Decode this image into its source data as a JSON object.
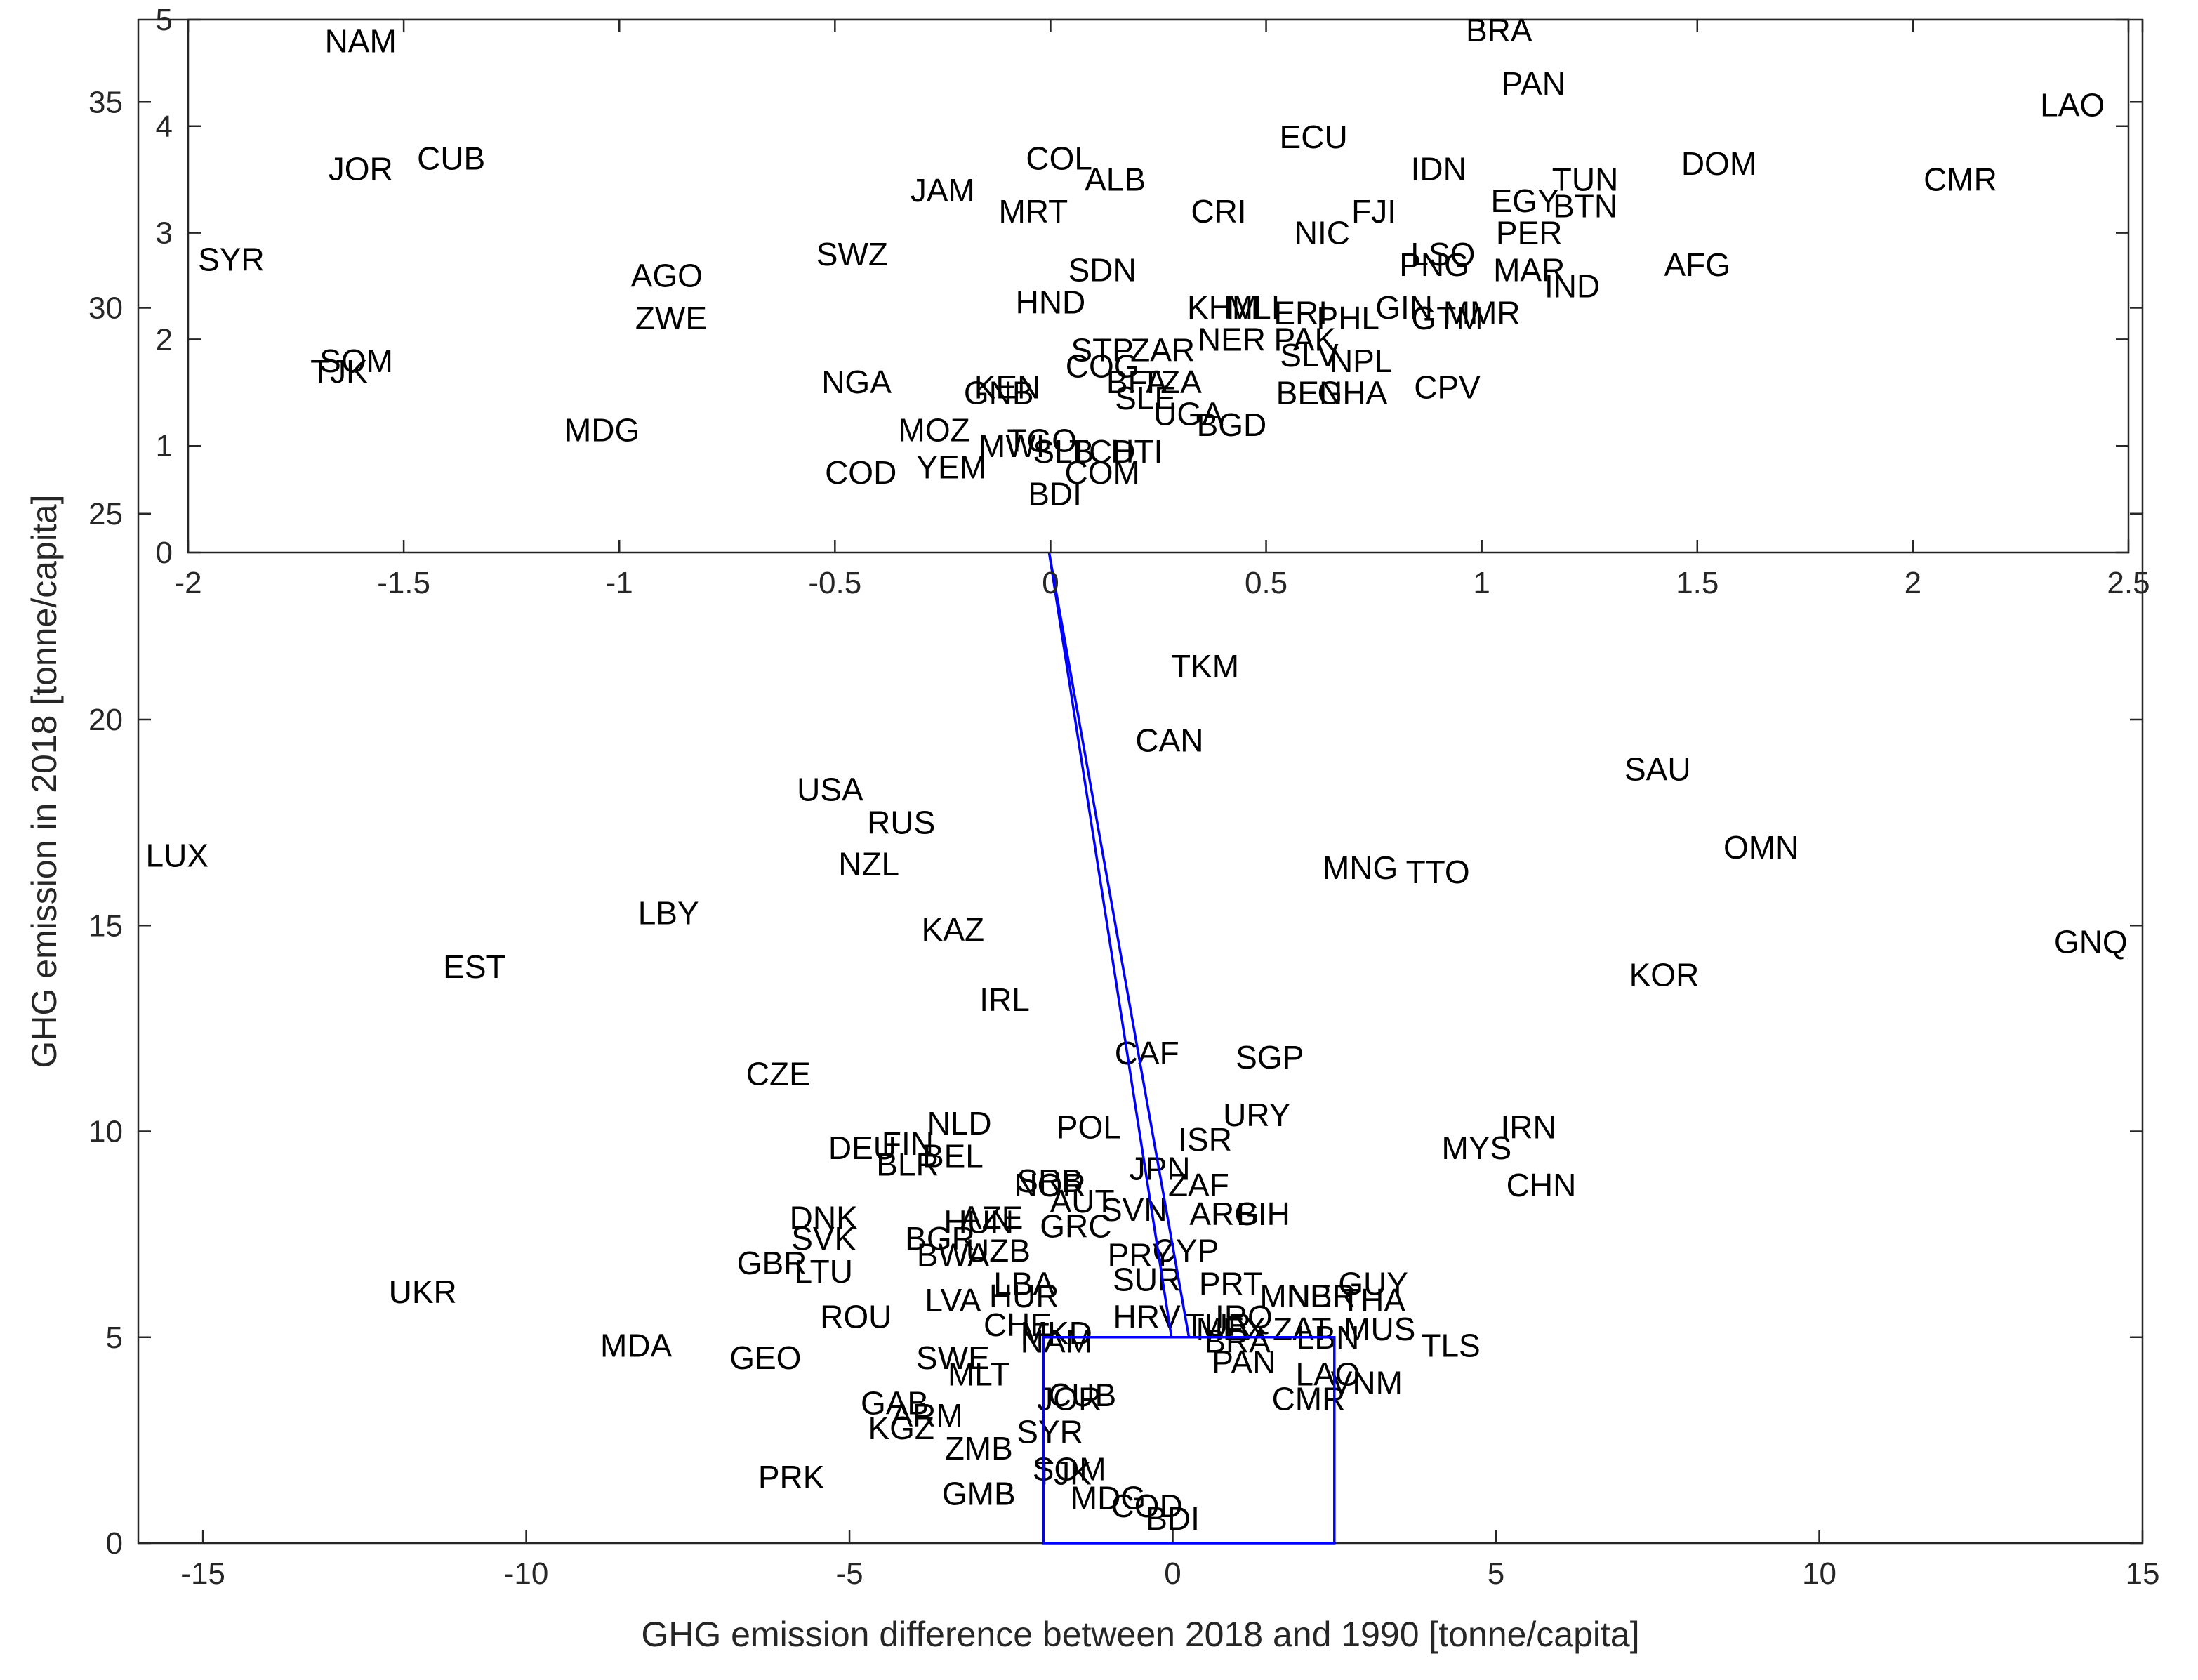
{
  "chart_data": [
    {
      "type": "scatter",
      "panel": "main",
      "xlabel": "GHG emission difference between 2018 and 1990 [tonne/capita]",
      "ylabel": "GHG emission in 2018 [tonne/capita]",
      "xlim": [
        -16,
        15
      ],
      "ylim": [
        0,
        37
      ],
      "xticks": [
        -15,
        -10,
        -5,
        0,
        5,
        10,
        15
      ],
      "yticks": [
        0,
        5,
        10,
        15,
        20,
        25,
        30,
        35
      ],
      "xtick_labels": [
        "-15",
        "-10",
        "-5",
        "0",
        "5",
        "10",
        "15"
      ],
      "ytick_labels": [
        "0",
        "5",
        "10",
        "15",
        "20",
        "25",
        "30",
        "35"
      ],
      "grid": false,
      "zoom_box": {
        "x": [
          -2,
          2.5
        ],
        "y": [
          0,
          5
        ],
        "color": "#0000ff"
      },
      "points": [
        {
          "label": "TKM",
          "x": 0.5,
          "y": 21.3
        },
        {
          "label": "CAN",
          "x": -0.05,
          "y": 19.5
        },
        {
          "label": "SAU",
          "x": 7.5,
          "y": 18.8
        },
        {
          "label": "USA",
          "x": -5.3,
          "y": 18.3
        },
        {
          "label": "RUS",
          "x": -4.2,
          "y": 17.5
        },
        {
          "label": "LUX",
          "x": -15.4,
          "y": 16.7
        },
        {
          "label": "OMN",
          "x": 9.1,
          "y": 16.9
        },
        {
          "label": "MNG",
          "x": 2.9,
          "y": 16.4
        },
        {
          "label": "TTO",
          "x": 4.1,
          "y": 16.3
        },
        {
          "label": "NZL",
          "x": -4.7,
          "y": 16.5
        },
        {
          "label": "LBY",
          "x": -7.8,
          "y": 15.3
        },
        {
          "label": "KAZ",
          "x": -3.4,
          "y": 14.9
        },
        {
          "label": "GNQ",
          "x": 14.2,
          "y": 14.6
        },
        {
          "label": "EST",
          "x": -10.8,
          "y": 14.0
        },
        {
          "label": "KOR",
          "x": 7.6,
          "y": 13.8
        },
        {
          "label": "IRL",
          "x": -2.6,
          "y": 13.2
        },
        {
          "label": "CAF",
          "x": -0.4,
          "y": 11.9
        },
        {
          "label": "SGP",
          "x": 1.5,
          "y": 11.8
        },
        {
          "label": "CZE",
          "x": -6.1,
          "y": 11.4
        },
        {
          "label": "URY",
          "x": 1.3,
          "y": 10.4
        },
        {
          "label": "NLD",
          "x": -3.3,
          "y": 10.2
        },
        {
          "label": "POL",
          "x": -1.3,
          "y": 10.1
        },
        {
          "label": "IRN",
          "x": 5.5,
          "y": 10.1
        },
        {
          "label": "FIN",
          "x": -4.1,
          "y": 9.7
        },
        {
          "label": "ISR",
          "x": 0.5,
          "y": 9.8
        },
        {
          "label": "MYS",
          "x": 4.7,
          "y": 9.6
        },
        {
          "label": "DEU",
          "x": -4.8,
          "y": 9.6
        },
        {
          "label": "BEL",
          "x": -3.4,
          "y": 9.4
        },
        {
          "label": "BLR",
          "x": -4.1,
          "y": 9.2
        },
        {
          "label": "JPN",
          "x": -0.2,
          "y": 9.1
        },
        {
          "label": "SRB",
          "x": -1.9,
          "y": 8.8
        },
        {
          "label": "NOR",
          "x": -1.9,
          "y": 8.7
        },
        {
          "label": "ZAF",
          "x": 0.4,
          "y": 8.7
        },
        {
          "label": "CHN",
          "x": 5.7,
          "y": 8.7
        },
        {
          "label": "AUT",
          "x": -1.4,
          "y": 8.3
        },
        {
          "label": "SVN",
          "x": -0.6,
          "y": 8.1
        },
        {
          "label": "ARG",
          "x": 0.8,
          "y": 8.0
        },
        {
          "label": "BIH",
          "x": 1.4,
          "y": 8.0
        },
        {
          "label": "AZE",
          "x": -2.8,
          "y": 7.9
        },
        {
          "label": "BGR",
          "x": -3.6,
          "y": 7.4
        },
        {
          "label": "HUN",
          "x": -3.0,
          "y": 7.8
        },
        {
          "label": "GRC",
          "x": -1.5,
          "y": 7.7
        },
        {
          "label": "DNK",
          "x": -5.4,
          "y": 7.9
        },
        {
          "label": "SVK",
          "x": -5.4,
          "y": 7.4
        },
        {
          "label": "UZB",
          "x": -2.7,
          "y": 7.1
        },
        {
          "label": "BWA",
          "x": -3.4,
          "y": 7.0
        },
        {
          "label": "PRY",
          "x": -0.5,
          "y": 7.0
        },
        {
          "label": "CYP",
          "x": 0.2,
          "y": 7.1
        },
        {
          "label": "GBR",
          "x": -6.2,
          "y": 6.8
        },
        {
          "label": "LTU",
          "x": -5.4,
          "y": 6.6
        },
        {
          "label": "SUR",
          "x": -0.4,
          "y": 6.4
        },
        {
          "label": "PRT",
          "x": 0.9,
          "y": 6.3
        },
        {
          "label": "GUY",
          "x": 3.1,
          "y": 6.3
        },
        {
          "label": "LBA",
          "x": -2.3,
          "y": 6.3
        },
        {
          "label": "UKR",
          "x": -11.6,
          "y": 6.1
        },
        {
          "label": "LVA",
          "x": -3.4,
          "y": 5.9
        },
        {
          "label": "HUR",
          "x": -2.3,
          "y": 6.0
        },
        {
          "label": "MNE",
          "x": 1.9,
          "y": 6.0
        },
        {
          "label": "NBR",
          "x": 2.3,
          "y": 6.0
        },
        {
          "label": "THA",
          "x": 3.1,
          "y": 5.9
        },
        {
          "label": "ROU",
          "x": -4.9,
          "y": 5.5
        },
        {
          "label": "HRV",
          "x": -0.4,
          "y": 5.5
        },
        {
          "label": "IRQ",
          "x": 1.1,
          "y": 5.5
        },
        {
          "label": "CHE",
          "x": -2.4,
          "y": 5.3
        },
        {
          "label": "MKD",
          "x": -1.8,
          "y": 5.1
        },
        {
          "label": "TUR",
          "x": 0.7,
          "y": 5.3
        },
        {
          "label": "MEX",
          "x": 0.9,
          "y": 5.2
        },
        {
          "label": "ZAT",
          "x": 2.0,
          "y": 5.2
        },
        {
          "label": "LBN",
          "x": 2.4,
          "y": 5.0
        },
        {
          "label": "MUS",
          "x": 3.2,
          "y": 5.2
        },
        {
          "label": "TLS",
          "x": 4.3,
          "y": 4.8
        },
        {
          "label": "MDA",
          "x": -8.3,
          "y": 4.8
        },
        {
          "label": "NAM",
          "x": -1.8,
          "y": 4.9
        },
        {
          "label": "BRA",
          "x": 1.0,
          "y": 4.9
        },
        {
          "label": "GEO",
          "x": -6.3,
          "y": 4.5
        },
        {
          "label": "SWE",
          "x": -3.4,
          "y": 4.5
        },
        {
          "label": "PAN",
          "x": 1.1,
          "y": 4.4
        },
        {
          "label": "MLT",
          "x": -3.0,
          "y": 4.1
        },
        {
          "label": "LAO",
          "x": 2.4,
          "y": 4.1
        },
        {
          "label": "VNM",
          "x": 3.0,
          "y": 3.9
        },
        {
          "label": "CMR",
          "x": 2.1,
          "y": 3.5
        },
        {
          "label": "GAB",
          "x": -4.3,
          "y": 3.4
        },
        {
          "label": "ARM",
          "x": -3.8,
          "y": 3.1
        },
        {
          "label": "KGZ",
          "x": -4.2,
          "y": 2.8
        },
        {
          "label": "ZMB",
          "x": -3.0,
          "y": 2.3
        },
        {
          "label": "PRK",
          "x": -5.9,
          "y": 1.6
        },
        {
          "label": "GMB",
          "x": -3.0,
          "y": 1.2
        },
        {
          "label": "JOR",
          "x": -1.6,
          "y": 3.5
        },
        {
          "label": "CUB",
          "x": -1.4,
          "y": 3.6
        },
        {
          "label": "SYR",
          "x": -1.9,
          "y": 2.7
        },
        {
          "label": "SOM",
          "x": -1.6,
          "y": 1.8
        },
        {
          "label": "TJK",
          "x": -1.7,
          "y": 1.7
        },
        {
          "label": "MDG",
          "x": -1.0,
          "y": 1.1
        },
        {
          "label": "COD",
          "x": -0.4,
          "y": 0.9
        },
        {
          "label": "BDI",
          "x": 0.0,
          "y": 0.6
        }
      ]
    },
    {
      "type": "scatter",
      "panel": "inset",
      "xlim": [
        -2,
        2.5
      ],
      "ylim": [
        0,
        5
      ],
      "xticks": [
        -2,
        -1.5,
        -1,
        -0.5,
        0,
        0.5,
        1,
        1.5,
        2,
        2.5
      ],
      "yticks": [
        0,
        1,
        2,
        3,
        4,
        5
      ],
      "xtick_labels": [
        "-2",
        "-1.5",
        "-1",
        "-0.5",
        "0",
        "0.5",
        "1",
        "1.5",
        "2",
        "2.5"
      ],
      "ytick_labels": [
        "0",
        "1",
        "2",
        "3",
        "4",
        "5"
      ],
      "grid": false,
      "points": [
        {
          "label": "NAM",
          "x": -1.6,
          "y": 4.8
        },
        {
          "label": "BRA",
          "x": 1.04,
          "y": 4.9
        },
        {
          "label": "PAN",
          "x": 1.12,
          "y": 4.4
        },
        {
          "label": "LAO",
          "x": 2.37,
          "y": 4.2
        },
        {
          "label": "ECU",
          "x": 0.61,
          "y": 3.9
        },
        {
          "label": "JOR",
          "x": -1.6,
          "y": 3.6
        },
        {
          "label": "CUB",
          "x": -1.39,
          "y": 3.7
        },
        {
          "label": "COL",
          "x": 0.02,
          "y": 3.7
        },
        {
          "label": "ALB",
          "x": 0.15,
          "y": 3.5
        },
        {
          "label": "IDN",
          "x": 0.9,
          "y": 3.6
        },
        {
          "label": "DOM",
          "x": 1.55,
          "y": 3.65
        },
        {
          "label": "TUN",
          "x": 1.24,
          "y": 3.5
        },
        {
          "label": "CMR",
          "x": 2.11,
          "y": 3.5
        },
        {
          "label": "JAM",
          "x": -0.25,
          "y": 3.4
        },
        {
          "label": "EGY",
          "x": 1.1,
          "y": 3.3
        },
        {
          "label": "BTN",
          "x": 1.24,
          "y": 3.25
        },
        {
          "label": "MRT",
          "x": -0.04,
          "y": 3.2
        },
        {
          "label": "CRI",
          "x": 0.39,
          "y": 3.2
        },
        {
          "label": "FJI",
          "x": 0.75,
          "y": 3.2
        },
        {
          "label": "PER",
          "x": 1.11,
          "y": 3.0
        },
        {
          "label": "NIC",
          "x": 0.63,
          "y": 3.0
        },
        {
          "label": "SYR",
          "x": -1.9,
          "y": 2.75
        },
        {
          "label": "SWZ",
          "x": -0.46,
          "y": 2.8
        },
        {
          "label": "LSO",
          "x": 0.91,
          "y": 2.8
        },
        {
          "label": "AGO",
          "x": -0.89,
          "y": 2.6
        },
        {
          "label": "PNG",
          "x": 0.89,
          "y": 2.7
        },
        {
          "label": "MAR",
          "x": 1.11,
          "y": 2.65
        },
        {
          "label": "AFG",
          "x": 1.5,
          "y": 2.7
        },
        {
          "label": "IND",
          "x": 1.21,
          "y": 2.5
        },
        {
          "label": "SDN",
          "x": 0.12,
          "y": 2.65
        },
        {
          "label": "HND",
          "x": 0.0,
          "y": 2.35
        },
        {
          "label": "KHM",
          "x": 0.4,
          "y": 2.3
        },
        {
          "label": "MLI",
          "x": 0.47,
          "y": 2.3
        },
        {
          "label": "ERI",
          "x": 0.58,
          "y": 2.25
        },
        {
          "label": "PHL",
          "x": 0.69,
          "y": 2.2
        },
        {
          "label": "GIN",
          "x": 0.82,
          "y": 2.3
        },
        {
          "label": "GTM",
          "x": 0.92,
          "y": 2.2
        },
        {
          "label": "MMR",
          "x": 1.0,
          "y": 2.25
        },
        {
          "label": "ZWE",
          "x": -0.88,
          "y": 2.2
        },
        {
          "label": "NER",
          "x": 0.42,
          "y": 2.0
        },
        {
          "label": "PAK",
          "x": 0.59,
          "y": 2.0
        },
        {
          "label": "SLV",
          "x": 0.6,
          "y": 1.85
        },
        {
          "label": "NPL",
          "x": 0.72,
          "y": 1.8
        },
        {
          "label": "STP",
          "x": 0.12,
          "y": 1.9
        },
        {
          "label": "ZAR",
          "x": 0.26,
          "y": 1.9
        },
        {
          "label": "COG",
          "x": 0.12,
          "y": 1.75
        },
        {
          "label": "SOM",
          "x": -1.61,
          "y": 1.8
        },
        {
          "label": "TJK",
          "x": -1.65,
          "y": 1.7
        },
        {
          "label": "NGA",
          "x": -0.45,
          "y": 1.6
        },
        {
          "label": "KEN",
          "x": -0.1,
          "y": 1.55
        },
        {
          "label": "GNB",
          "x": -0.12,
          "y": 1.5
        },
        {
          "label": "BFA",
          "x": 0.2,
          "y": 1.6
        },
        {
          "label": "TZA",
          "x": 0.28,
          "y": 1.6
        },
        {
          "label": "BEN",
          "x": 0.6,
          "y": 1.5
        },
        {
          "label": "GHA",
          "x": 0.7,
          "y": 1.5
        },
        {
          "label": "CPV",
          "x": 0.92,
          "y": 1.55
        },
        {
          "label": "SLE",
          "x": 0.22,
          "y": 1.45
        },
        {
          "label": "UGA",
          "x": 0.32,
          "y": 1.3
        },
        {
          "label": "BGD",
          "x": 0.42,
          "y": 1.2
        },
        {
          "label": "MDG",
          "x": -1.04,
          "y": 1.15
        },
        {
          "label": "MOZ",
          "x": -0.27,
          "y": 1.15
        },
        {
          "label": "MWI",
          "x": -0.09,
          "y": 1.0
        },
        {
          "label": "TGO",
          "x": -0.02,
          "y": 1.05
        },
        {
          "label": "SLB",
          "x": 0.03,
          "y": 0.95
        },
        {
          "label": "TCD",
          "x": 0.12,
          "y": 0.95
        },
        {
          "label": "HTI",
          "x": 0.2,
          "y": 0.95
        },
        {
          "label": "YEM",
          "x": -0.23,
          "y": 0.8
        },
        {
          "label": "COD",
          "x": -0.44,
          "y": 0.75
        },
        {
          "label": "COM",
          "x": 0.12,
          "y": 0.75
        },
        {
          "label": "BDI",
          "x": 0.01,
          "y": 0.55
        }
      ]
    }
  ]
}
